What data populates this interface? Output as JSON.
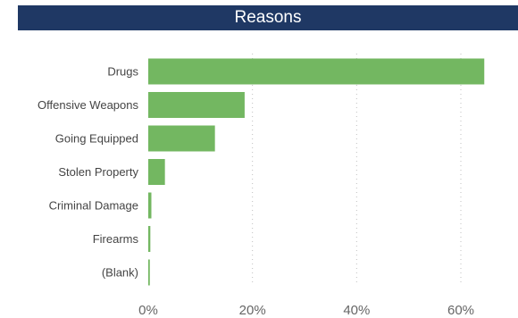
{
  "chart_data": {
    "type": "bar",
    "orientation": "horizontal",
    "title": "Reasons",
    "categories": [
      "Drugs",
      "Offensive Weapons",
      "Going Equipped",
      "Stolen Property",
      "Criminal Damage",
      "Firearms",
      "(Blank)"
    ],
    "values": [
      64.5,
      18.5,
      12.8,
      3.2,
      0.6,
      0.4,
      0.3
    ],
    "unit": "%",
    "xlim": [
      0,
      70
    ],
    "xticks": [
      0,
      20,
      40,
      60
    ],
    "xtick_labels": [
      "0%",
      "20%",
      "40%",
      "60%"
    ],
    "grid": true,
    "bar_color": "#73b761",
    "title_bar_color": "#1f3864"
  }
}
